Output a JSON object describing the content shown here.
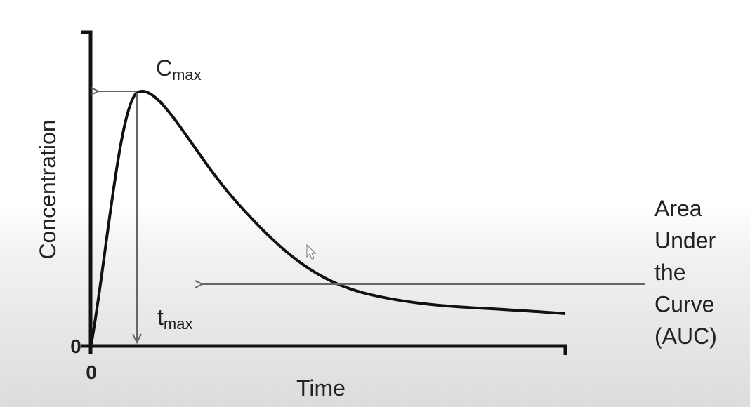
{
  "axes": {
    "y_label": "Concentration",
    "x_label": "Time",
    "y_origin": "0",
    "x_origin": "0"
  },
  "annotations": {
    "cmax": {
      "main": "C",
      "sub": "max"
    },
    "tmax": {
      "main": "t",
      "sub": "max"
    },
    "auc": [
      "Area",
      "Under",
      "the",
      "Curve",
      "(AUC)"
    ]
  }
}
